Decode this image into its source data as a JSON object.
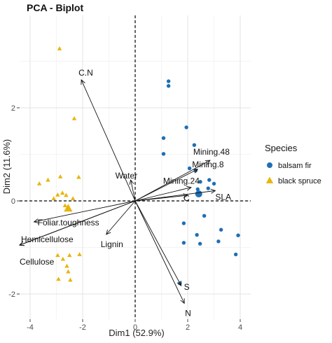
{
  "chart_data": {
    "type": "scatter",
    "title": "PCA - Biplot",
    "xlabel": "Dim1 (52.9%)",
    "ylabel": "Dim2 (11.6%)",
    "xlim": [
      -4.2,
      4.2
    ],
    "ylim": [
      -2.45,
      3.6
    ],
    "x_ticks": [
      -4,
      -2,
      0,
      2,
      4
    ],
    "y_ticks": [
      -2,
      0,
      2
    ],
    "x_tick_labels": [
      "-4",
      "-2",
      "0",
      "2",
      "4"
    ],
    "y_tick_labels": [
      "-2",
      "0",
      "2"
    ],
    "grid": true,
    "zero_lines": "dashed",
    "legend": {
      "title": "Species",
      "position": "right",
      "entries": [
        "balsam fir",
        "black spruce"
      ]
    },
    "series": [
      {
        "name": "balsam fir",
        "marker": "circle",
        "color": "#1f6fb4",
        "points": [
          {
            "x": 1.27,
            "y": 2.57
          },
          {
            "x": 1.27,
            "y": 2.47
          },
          {
            "x": 1.95,
            "y": 1.58
          },
          {
            "x": 1.08,
            "y": 1.35
          },
          {
            "x": 1.08,
            "y": 1.01
          },
          {
            "x": 2.25,
            "y": 1.2
          },
          {
            "x": 2.07,
            "y": 0.7
          },
          {
            "x": 2.3,
            "y": 0.65
          },
          {
            "x": 2.48,
            "y": 0.41
          },
          {
            "x": 2.82,
            "y": 0.45
          },
          {
            "x": 3.0,
            "y": 0.37
          },
          {
            "x": 2.38,
            "y": 0.25
          },
          {
            "x": 2.78,
            "y": 0.27
          },
          {
            "x": 2.63,
            "y": -0.32
          },
          {
            "x": 3.27,
            "y": -0.62
          },
          {
            "x": 1.85,
            "y": -0.48
          },
          {
            "x": 2.35,
            "y": -0.73
          },
          {
            "x": 3.92,
            "y": -0.74
          },
          {
            "x": 1.85,
            "y": -0.9
          },
          {
            "x": 2.47,
            "y": -0.92
          },
          {
            "x": 3.17,
            "y": -0.87
          },
          {
            "x": 3.83,
            "y": -1.15
          },
          {
            "x": 1.7,
            "y": -1.77
          }
        ],
        "centroid": {
          "x": 2.42,
          "y": 0.15
        }
      },
      {
        "name": "black spruce",
        "marker": "triangle",
        "color": "#e8b50e",
        "points": [
          {
            "x": -2.88,
            "y": 3.27
          },
          {
            "x": -2.32,
            "y": 1.77
          },
          {
            "x": -2.85,
            "y": 0.52
          },
          {
            "x": -2.15,
            "y": 0.51
          },
          {
            "x": -3.32,
            "y": 0.45
          },
          {
            "x": -3.65,
            "y": 0.37
          },
          {
            "x": -2.77,
            "y": 0.17
          },
          {
            "x": -2.95,
            "y": 0.13
          },
          {
            "x": -2.63,
            "y": 0.12
          },
          {
            "x": -3.1,
            "y": 0.05
          },
          {
            "x": -2.37,
            "y": 0.05
          },
          {
            "x": -2.67,
            "y": -0.1
          },
          {
            "x": -2.95,
            "y": -1.17
          },
          {
            "x": -2.75,
            "y": -1.25
          },
          {
            "x": -2.5,
            "y": -1.17
          },
          {
            "x": -2.12,
            "y": -1.15
          },
          {
            "x": -2.6,
            "y": -1.4
          },
          {
            "x": -2.55,
            "y": -1.52
          },
          {
            "x": -2.92,
            "y": -1.68
          },
          {
            "x": -2.47,
            "y": -1.7
          }
        ],
        "centroid": {
          "x": -2.55,
          "y": -0.16
        }
      }
    ],
    "variables": [
      {
        "name": "C.N",
        "x": -2.05,
        "y": 2.6
      },
      {
        "name": "Water",
        "x": -0.17,
        "y": 0.45
      },
      {
        "name": "Foliar.toughness",
        "x": -3.85,
        "y": -0.45
      },
      {
        "name": "Hemicellulose",
        "x": -4.4,
        "y": -0.95
      },
      {
        "name": "Cellulose",
        "x": -4.4,
        "y": -0.95
      },
      {
        "name": "Lignin",
        "x": -1.1,
        "y": -0.72
      },
      {
        "name": "Mining.48",
        "x": 2.85,
        "y": 0.87
      },
      {
        "name": "Mining.8",
        "x": 2.38,
        "y": 0.68
      },
      {
        "name": "Mining.24",
        "x": 2.13,
        "y": 0.29
      },
      {
        "name": "C",
        "x": 2.0,
        "y": 0.12
      },
      {
        "name": "SLA",
        "x": 3.05,
        "y": 0.22
      },
      {
        "name": "S",
        "x": 1.75,
        "y": -1.82
      },
      {
        "name": "N",
        "x": 1.87,
        "y": -2.2
      }
    ]
  }
}
